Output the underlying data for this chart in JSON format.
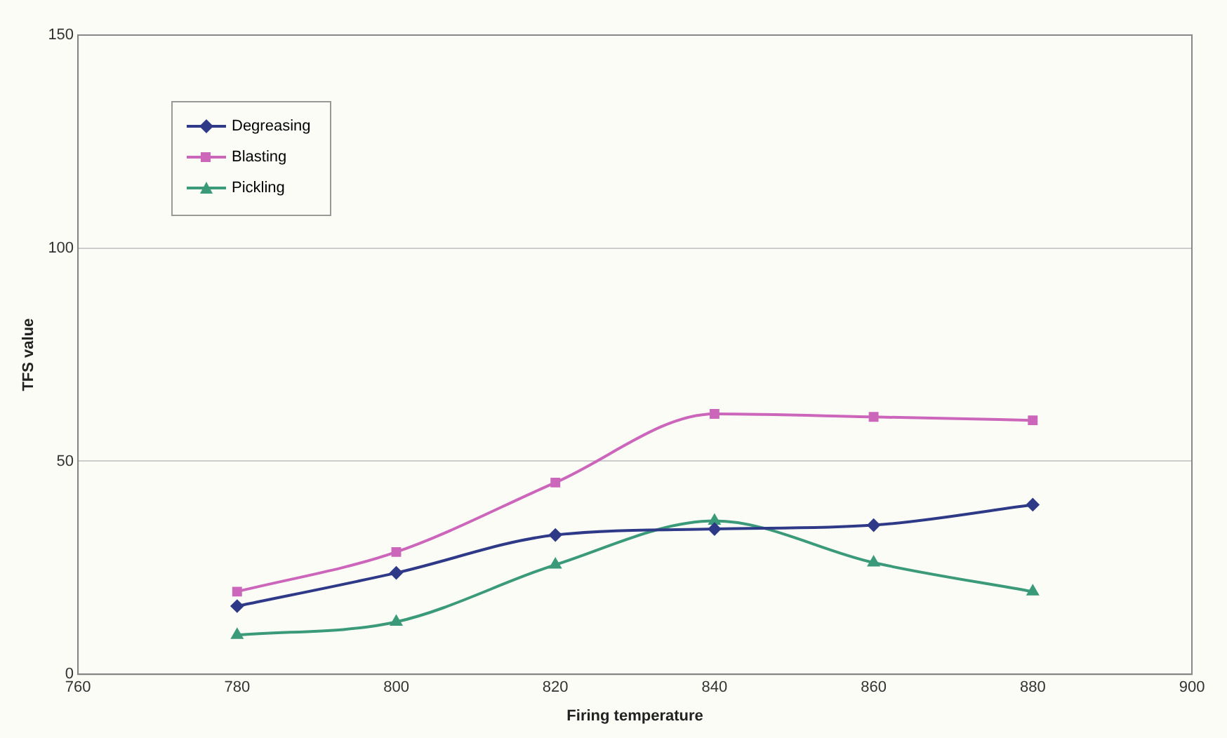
{
  "chart_data": {
    "type": "line",
    "xlabel": "Firing temperature",
    "ylabel": "TFS value",
    "x": [
      780,
      800,
      820,
      840,
      860,
      880
    ],
    "series": [
      {
        "name": "Degreasing",
        "color": "#2e3a87",
        "marker": "diamond",
        "values": [
          16,
          23.8,
          32.7,
          34.1,
          35,
          39.8
        ]
      },
      {
        "name": "Blasting",
        "color": "#cc66bb",
        "marker": "square",
        "values": [
          19.4,
          28.7,
          45,
          61.1,
          60.4,
          59.6
        ]
      },
      {
        "name": "Pickling",
        "color": "#3a9a7a",
        "marker": "triangle",
        "values": [
          9.2,
          12.3,
          25.7,
          36,
          26.2,
          19.4
        ]
      }
    ],
    "xlim": [
      760,
      900
    ],
    "xticks": [
      760,
      780,
      800,
      820,
      840,
      860,
      880,
      900
    ],
    "ylim": [
      0,
      150
    ],
    "yticks": [
      0,
      50,
      100,
      150
    ],
    "grid": "y",
    "legend": "top left",
    "line_style": "solid"
  }
}
